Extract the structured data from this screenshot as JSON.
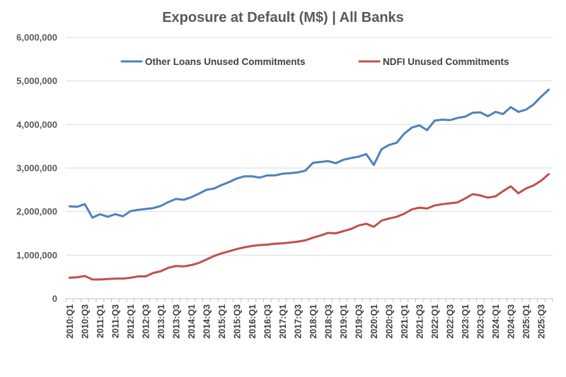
{
  "chart_data": {
    "type": "line",
    "title": "Exposure at Default (M$) | All Banks",
    "xlabel": "",
    "ylabel": "",
    "ylim": [
      0,
      6000000
    ],
    "yticks": [
      "0",
      "1,000,000",
      "2,000,000",
      "3,000,000",
      "4,000,000",
      "5,000,000",
      "6,000,000"
    ],
    "grid": true,
    "legend_position": "top",
    "x": [
      "2010:Q1",
      "2010:Q2",
      "2010:Q3",
      "2010:Q4",
      "2011:Q1",
      "2011:Q2",
      "2011:Q3",
      "2011:Q4",
      "2012:Q1",
      "2012:Q2",
      "2012:Q3",
      "2012:Q4",
      "2013:Q1",
      "2013:Q2",
      "2013:Q3",
      "2013:Q4",
      "2014:Q1",
      "2014:Q2",
      "2014:Q3",
      "2014:Q4",
      "2015:Q1",
      "2015:Q2",
      "2015:Q3",
      "2015:Q4",
      "2016:Q1",
      "2016:Q2",
      "2016:Q3",
      "2016:Q4",
      "2017:Q1",
      "2017:Q2",
      "2017:Q3",
      "2017:Q4",
      "2018:Q1",
      "2018:Q2",
      "2018:Q3",
      "2018:Q4",
      "2019:Q1",
      "2019:Q2",
      "2019:Q3",
      "2019:Q4",
      "2020:Q1",
      "2020:Q2",
      "2020:Q3",
      "2020:Q4",
      "2021:Q1",
      "2021:Q2",
      "2021:Q3",
      "2021:Q4",
      "2022:Q1",
      "2022:Q2",
      "2022:Q3",
      "2022:Q4",
      "2023:Q1",
      "2023:Q2",
      "2023:Q3",
      "2023:Q4",
      "2024:Q1",
      "2024:Q2",
      "2024:Q3",
      "2024:Q4",
      "2025:Q1",
      "2025:Q2",
      "2025:Q3",
      "2025:Q4"
    ],
    "x_tick_labels": [
      "2010:Q1",
      "2010:Q3",
      "2011:Q1",
      "2011:Q3",
      "2012:Q1",
      "2012:Q3",
      "2013:Q1",
      "2013:Q3",
      "2014:Q1",
      "2014:Q3",
      "2015:Q1",
      "2015:Q3",
      "2016:Q1",
      "2016:Q3",
      "2017:Q1",
      "2017:Q3",
      "2018:Q1",
      "2018:Q3",
      "2019:Q1",
      "2019:Q3",
      "2020:Q1",
      "2020:Q3",
      "2021:Q1",
      "2021:Q3",
      "2022:Q1",
      "2022:Q3",
      "2023:Q1",
      "2023:Q3",
      "2024:Q1",
      "2024:Q3",
      "2025:Q1",
      "2025:Q3"
    ],
    "series": [
      {
        "name": "Other Loans Unused Commitments",
        "color": "#4f81bd",
        "values": [
          2120000,
          2110000,
          2170000,
          1860000,
          1940000,
          1880000,
          1940000,
          1890000,
          2010000,
          2040000,
          2060000,
          2080000,
          2130000,
          2220000,
          2290000,
          2270000,
          2330000,
          2410000,
          2500000,
          2530000,
          2610000,
          2680000,
          2760000,
          2810000,
          2810000,
          2780000,
          2830000,
          2830000,
          2870000,
          2880000,
          2900000,
          2940000,
          3120000,
          3140000,
          3160000,
          3110000,
          3190000,
          3230000,
          3260000,
          3320000,
          3070000,
          3430000,
          3530000,
          3580000,
          3790000,
          3930000,
          3980000,
          3870000,
          4090000,
          4110000,
          4100000,
          4150000,
          4180000,
          4270000,
          4280000,
          4190000,
          4290000,
          4240000,
          4400000,
          4290000,
          4340000,
          4460000,
          4640000,
          4800000
        ]
      },
      {
        "name": "NDFI Unused Commitments",
        "color": "#c0504d",
        "values": [
          480000,
          490000,
          520000,
          440000,
          440000,
          450000,
          460000,
          460000,
          480000,
          510000,
          510000,
          590000,
          630000,
          710000,
          750000,
          740000,
          770000,
          820000,
          900000,
          980000,
          1040000,
          1090000,
          1140000,
          1180000,
          1210000,
          1230000,
          1240000,
          1260000,
          1270000,
          1290000,
          1310000,
          1340000,
          1400000,
          1450000,
          1510000,
          1500000,
          1550000,
          1600000,
          1680000,
          1720000,
          1650000,
          1790000,
          1840000,
          1880000,
          1950000,
          2050000,
          2090000,
          2070000,
          2140000,
          2170000,
          2190000,
          2210000,
          2300000,
          2400000,
          2370000,
          2320000,
          2350000,
          2470000,
          2580000,
          2420000,
          2530000,
          2600000,
          2710000,
          2860000
        ]
      }
    ]
  }
}
